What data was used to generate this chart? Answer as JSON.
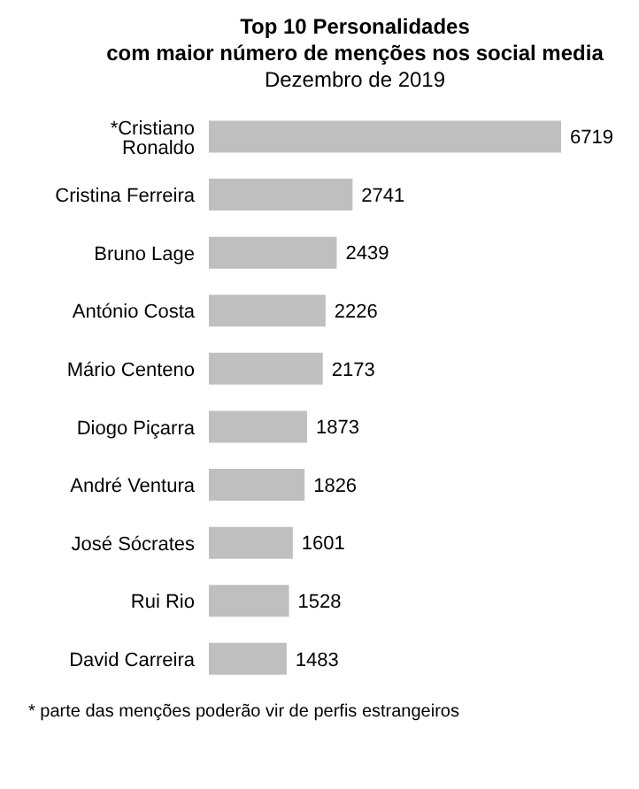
{
  "chart_data": {
    "type": "bar",
    "orientation": "horizontal",
    "title": "Top 10 Personalidades\ncom maior número de menções nos social media",
    "subtitle": "Dezembro de 2019",
    "categories": [
      "*Cristiano Ronaldo",
      "Cristina Ferreira",
      "Bruno Lage",
      "António Costa",
      "Mário Centeno",
      "Diogo Piçarra",
      "André Ventura",
      "José Sócrates",
      "Rui Rio",
      "David Carreira"
    ],
    "values": [
      6719,
      2741,
      2439,
      2226,
      2173,
      1873,
      1826,
      1601,
      1528,
      1483
    ],
    "color": "#bfbfbf",
    "data_labels": true,
    "relative": false,
    "annotations": [
      "* parte das menções poderão vir de perfis estrangeiros"
    ]
  }
}
